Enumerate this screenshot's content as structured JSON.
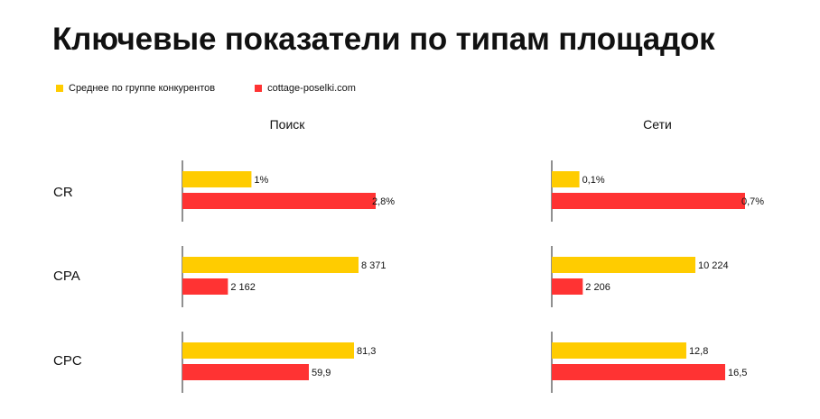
{
  "title": "Ключевые показатели по типам площадок",
  "legend": {
    "competitors": "Среднее по группе конкурентов",
    "site": "cottage-poselki.com"
  },
  "colors": {
    "competitors": "#FFCC00",
    "site": "#FF3333",
    "axis": "#222222"
  },
  "panels": [
    "Поиск",
    "Сети"
  ],
  "metrics": [
    "CR",
    "CPA",
    "CPC"
  ],
  "chart_data": {
    "type": "bar",
    "orientation": "horizontal",
    "grouped_by": "metric",
    "panels": [
      {
        "name": "Поиск",
        "metrics": [
          {
            "metric": "CR",
            "competitors": 1,
            "site": 2.8,
            "competitors_label": "1%",
            "site_label": "2,8%"
          },
          {
            "metric": "CPA",
            "competitors": 8371,
            "site": 2162,
            "competitors_label": "8 371",
            "site_label": "2 162"
          },
          {
            "metric": "CPC",
            "competitors": 81.3,
            "site": 59.9,
            "competitors_label": "81,3",
            "site_label": "59,9"
          }
        ]
      },
      {
        "name": "Сети",
        "metrics": [
          {
            "metric": "CR",
            "competitors": 0.1,
            "site": 0.7,
            "competitors_label": "0,1%",
            "site_label": "0,7%"
          },
          {
            "metric": "CPA",
            "competitors": 10224,
            "site": 2206,
            "competitors_label": "10 224",
            "site_label": "2 206"
          },
          {
            "metric": "CPC",
            "competitors": 12.8,
            "site": 16.5,
            "competitors_label": "12,8",
            "site_label": "16,5"
          }
        ]
      }
    ]
  }
}
